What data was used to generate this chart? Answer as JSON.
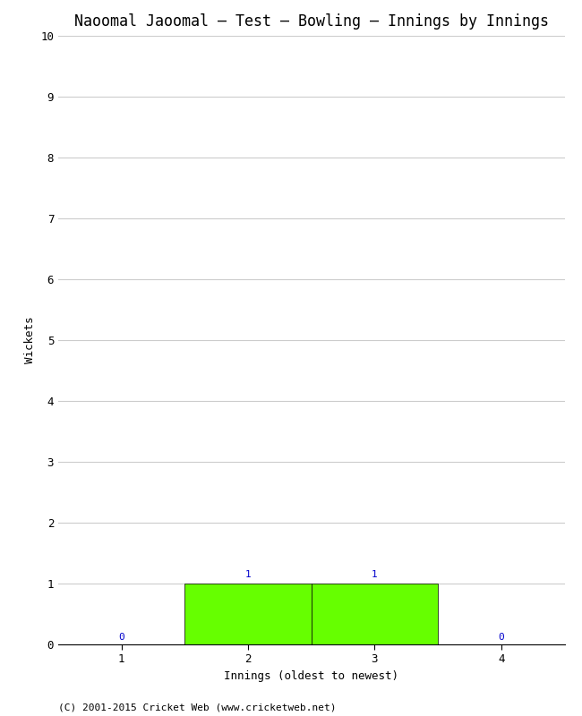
{
  "title": "Naoomal Jaoomal – Test – Bowling – Innings by Innings",
  "xlabel": "Innings (oldest to newest)",
  "ylabel": "Wickets",
  "categories": [
    1,
    2,
    3,
    4
  ],
  "values": [
    0,
    1,
    1,
    0
  ],
  "bar_color": "#66ff00",
  "bar_edge_color": "#000000",
  "annotation_color": "#0000cc",
  "ylim": [
    0,
    10
  ],
  "yticks": [
    0,
    1,
    2,
    3,
    4,
    5,
    6,
    7,
    8,
    9,
    10
  ],
  "xticks": [
    1,
    2,
    3,
    4
  ],
  "xlim": [
    0.5,
    4.5
  ],
  "background_color": "#ffffff",
  "grid_color": "#cccccc",
  "footnote": "(C) 2001-2015 Cricket Web (www.cricketweb.net)",
  "title_fontsize": 12,
  "label_fontsize": 9,
  "tick_fontsize": 9,
  "annotation_fontsize": 8,
  "footnote_fontsize": 8,
  "bar_width": 1.0
}
